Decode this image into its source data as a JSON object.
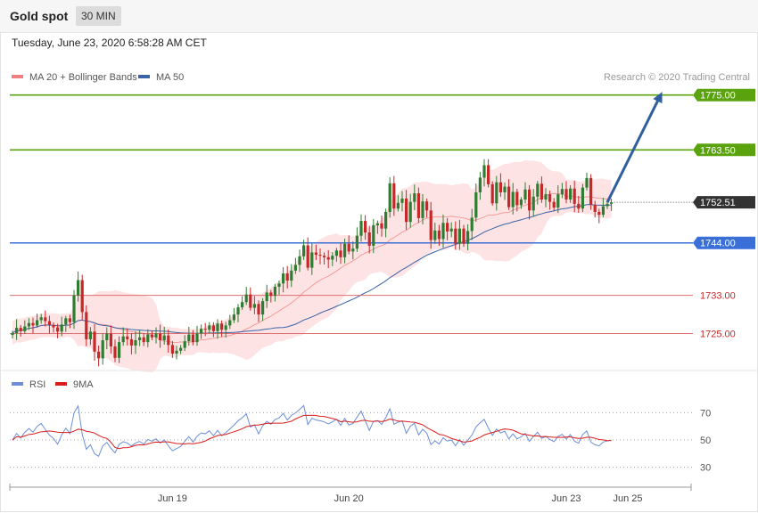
{
  "header": {
    "title": "Gold spot",
    "timeframe": "30 MIN",
    "timestamp": "Tuesday, June 23, 2020 6:58:28 AM CET"
  },
  "colors": {
    "bollinger": "#f08080",
    "bollinger_fill": "#fde3e3",
    "ma50": "#3a63a8",
    "target_line": "#5aa30e",
    "pivot_line": "#3a6fd8",
    "support_line": "#e07070",
    "current_price_tag": "#333333",
    "candle_up": "#2e7d32",
    "candle_down": "#c62828",
    "arrow": "#2f5f9e",
    "rsi_line": "#6b8fd8",
    "rsi_ma": "#d91c1c"
  },
  "chart_data": [
    {
      "type": "candlestick",
      "legend": [
        {
          "label": "MA 20 + Bollinger Bands",
          "color": "#f08080"
        },
        {
          "label": "MA 50",
          "color": "#3a63a8"
        }
      ],
      "legend_position": "top-left",
      "copyright": "Research © 2020 Trading Central",
      "ylim": [
        1718,
        1777
      ],
      "current_price": "1752.51",
      "levels": [
        {
          "label": "1775.00",
          "value": 1775.0,
          "role": "target"
        },
        {
          "label": "1763.50",
          "value": 1763.5,
          "role": "target"
        },
        {
          "label": "1744.00",
          "value": 1744.0,
          "role": "pivot"
        },
        {
          "label": "1733.00",
          "value": 1733.0,
          "role": "support"
        },
        {
          "label": "1725.00",
          "value": 1725.0,
          "role": "support"
        }
      ],
      "x_ticks": [
        {
          "label": "Jun 19",
          "index": 39
        },
        {
          "label": "Jun 20",
          "index": 82
        },
        {
          "label": "Jun 23",
          "index": 135
        },
        {
          "label": "Jun 25",
          "index": 150
        }
      ],
      "projection": {
        "from_index": 145,
        "from": 1752.51,
        "to_index": 158,
        "to": 1775.0
      },
      "closes": [
        1725.1,
        1726.2,
        1725.5,
        1726.5,
        1727.2,
        1726.7,
        1727.8,
        1728.4,
        1727.6,
        1726.8,
        1726.3,
        1725.4,
        1726.9,
        1728.2,
        1727.4,
        1733.0,
        1736.2,
        1729.5,
        1723.8,
        1725.4,
        1721.2,
        1719.8,
        1723.6,
        1725.0,
        1722.3,
        1719.9,
        1723.2,
        1724.4,
        1723.8,
        1722.5,
        1723.6,
        1724.2,
        1723.2,
        1724.8,
        1724.2,
        1725.0,
        1723.6,
        1724.6,
        1722.6,
        1720.8,
        1721.4,
        1722.0,
        1723.4,
        1724.8,
        1723.2,
        1725.0,
        1726.0,
        1725.8,
        1726.7,
        1725.5,
        1727.1,
        1725.8,
        1726.7,
        1727.8,
        1729.0,
        1730.5,
        1731.6,
        1733.2,
        1730.4,
        1731.2,
        1729.0,
        1731.8,
        1733.6,
        1732.9,
        1734.8,
        1735.5,
        1737.6,
        1736.1,
        1738.2,
        1739.4,
        1741.2,
        1743.5,
        1738.8,
        1742.0,
        1741.5,
        1741.3,
        1741.0,
        1740.5,
        1741.3,
        1742.4,
        1741.0,
        1743.8,
        1742.2,
        1742.8,
        1745.5,
        1748.6,
        1746.2,
        1743.4,
        1747.7,
        1748.1,
        1747.0,
        1750.5,
        1756.5,
        1751.2,
        1752.4,
        1753.3,
        1748.4,
        1752.6,
        1754.4,
        1749.2,
        1752.7,
        1750.8,
        1744.6,
        1746.6,
        1744.8,
        1748.2,
        1746.4,
        1747.0,
        1743.8,
        1747.0,
        1743.8,
        1746.5,
        1749.3,
        1754.6,
        1757.7,
        1760.3,
        1756.3,
        1752.3,
        1756.7,
        1754.6,
        1755.8,
        1751.5,
        1754.7,
        1751.9,
        1753.1,
        1755.2,
        1750.8,
        1753.7,
        1756.4,
        1753.1,
        1754.2,
        1752.6,
        1751.4,
        1754.2,
        1755.3,
        1753.1,
        1755.4,
        1752.2,
        1751.2,
        1755.6,
        1757.6,
        1752.0,
        1750.5,
        1749.9,
        1751.7,
        1752.2,
        1752.51
      ]
    },
    {
      "type": "line",
      "legend": [
        {
          "label": "RSI",
          "color": "#6b8fd8"
        },
        {
          "label": "9MA",
          "color": "#d91c1c"
        }
      ],
      "ylim": [
        20,
        80
      ],
      "reference_lines": [
        {
          "label": "70",
          "value": 70
        },
        {
          "label": "50",
          "value": 50
        },
        {
          "label": "30",
          "value": 30
        }
      ]
    }
  ]
}
